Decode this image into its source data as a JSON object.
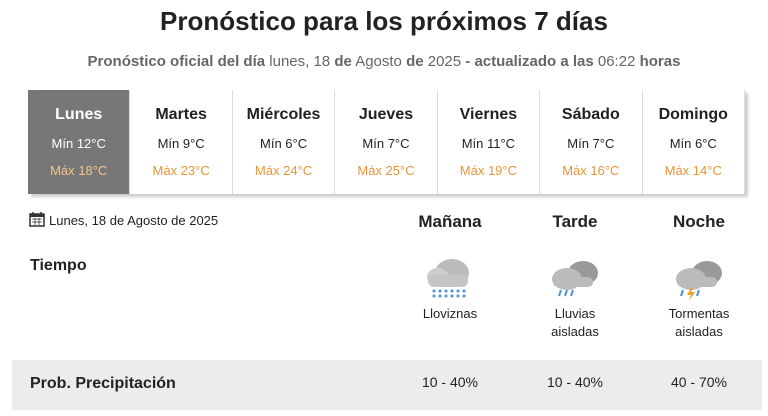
{
  "header": {
    "title": "Pronóstico para los próximos 7 días",
    "subtitle": [
      {
        "text": "Pronóstico oficial del día",
        "bold": true
      },
      {
        "text": "lunes, 18",
        "bold": false
      },
      {
        "text": "de",
        "bold": true
      },
      {
        "text": "Agosto",
        "bold": false
      },
      {
        "text": "de",
        "bold": true
      },
      {
        "text": "2025",
        "bold": false
      },
      {
        "text": "- actualizado a las",
        "bold": true
      },
      {
        "text": "06:22",
        "bold": false
      },
      {
        "text": "horas",
        "bold": true
      }
    ]
  },
  "days": [
    {
      "name": "Lunes",
      "min": "Mín 12°C",
      "max": "Máx 18°C",
      "selected": true
    },
    {
      "name": "Martes",
      "min": "Mín 9°C",
      "max": "Máx 23°C",
      "selected": false
    },
    {
      "name": "Miércoles",
      "min": "Mín 6°C",
      "max": "Máx 24°C",
      "selected": false
    },
    {
      "name": "Jueves",
      "min": "Mín 7°C",
      "max": "Máx 25°C",
      "selected": false
    },
    {
      "name": "Viernes",
      "min": "Mín 11°C",
      "max": "Máx 19°C",
      "selected": false
    },
    {
      "name": "Sábado",
      "min": "Mín 7°C",
      "max": "Máx 16°C",
      "selected": false
    },
    {
      "name": "Domingo",
      "min": "Mín 6°C",
      "max": "Máx 14°C",
      "selected": false
    }
  ],
  "detail": {
    "date": "Lunes, 18 de Agosto de 2025",
    "periods": [
      "Mañana",
      "Tarde",
      "Noche"
    ],
    "weather_label": "Tiempo",
    "conditions": [
      "Lloviznas",
      "Lluvias aisladas",
      "Tormentas aisladas"
    ],
    "precip_label": "Prob. Precipitación",
    "precip": [
      "10 - 40%",
      "10 - 40%",
      "40 - 70%"
    ]
  }
}
